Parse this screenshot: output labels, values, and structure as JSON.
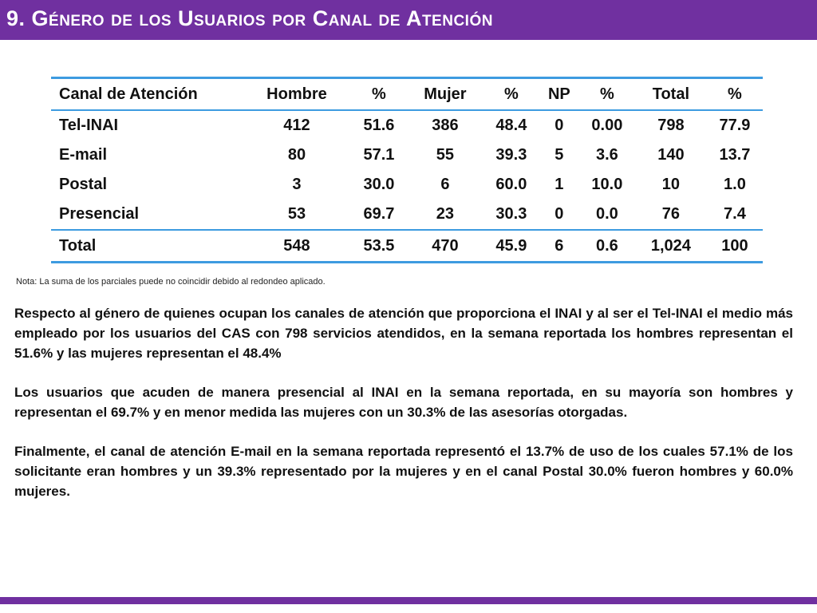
{
  "title": "9. Género de los Usuarios por Canal de Atención",
  "colors": {
    "accent": "#7030a0",
    "table_rule": "#3d9be0"
  },
  "table": {
    "headers": [
      "Canal de Atención",
      "Hombre",
      "%",
      "Mujer",
      "%",
      "NP",
      "%",
      "Total",
      "%"
    ],
    "rows": [
      [
        "Tel-INAI",
        "412",
        "51.6",
        "386",
        "48.4",
        "0",
        "0.00",
        "798",
        "77.9"
      ],
      [
        "E-mail",
        "80",
        "57.1",
        "55",
        "39.3",
        "5",
        "3.6",
        "140",
        "13.7"
      ],
      [
        "Postal",
        "3",
        "30.0",
        "6",
        "60.0",
        "1",
        "10.0",
        "10",
        "1.0"
      ],
      [
        "Presencial",
        "53",
        "69.7",
        "23",
        "30.3",
        "0",
        "0.0",
        "76",
        "7.4"
      ]
    ],
    "total_row": [
      "Total",
      "548",
      "53.5",
      "470",
      "45.9",
      "6",
      "0.6",
      "1,024",
      "100"
    ]
  },
  "note": "Nota: La suma de los parciales puede no coincidir debido al redondeo aplicado.",
  "paragraphs": [
    "Respecto al género de quienes ocupan los canales de atención que proporciona el INAI y al ser el Tel-INAI el medio más empleado por los usuarios del CAS con 798 servicios atendidos, en la semana reportada los hombres representan el 51.6% y las mujeres representan el 48.4%",
    "Los usuarios que acuden de manera presencial al INAI en la semana reportada, en su mayoría son hombres y representan el 69.7% y en menor medida las mujeres con un 30.3% de las asesorías otorgadas.",
    "Finalmente, el canal de atención E-mail en la semana reportada representó el 13.7% de uso de los cuales 57.1% de los solicitante eran hombres y un 39.3% representado por la mujeres y en el canal Postal 30.0% fueron hombres y 60.0% mujeres."
  ]
}
